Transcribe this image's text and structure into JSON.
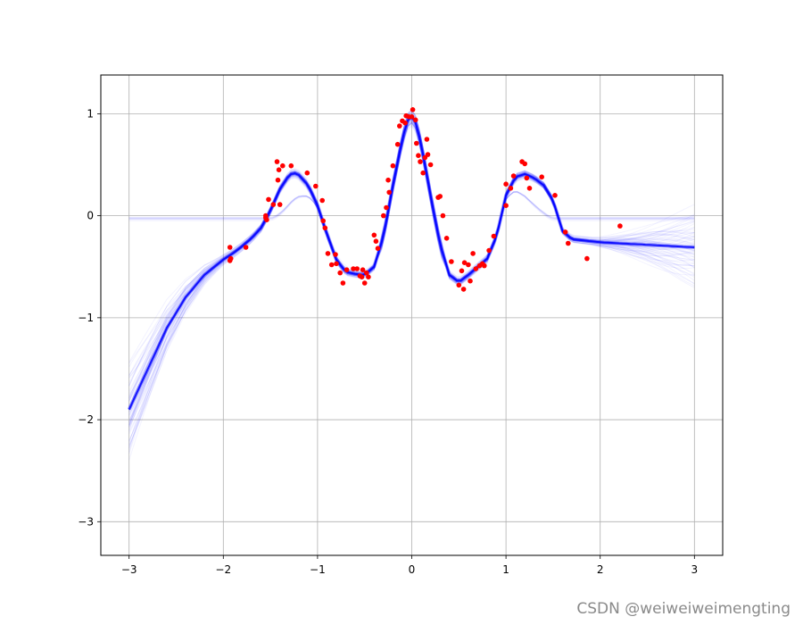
{
  "watermark": "CSDN @weiweiweimengting",
  "chart_data": {
    "type": "scatter",
    "title": "",
    "xlabel": "",
    "ylabel": "",
    "xlim": [
      -3.3,
      3.3
    ],
    "ylim": [
      -3.33,
      1.38
    ],
    "grid": true,
    "x_ticks": [
      -3,
      -2,
      -1,
      0,
      1,
      2,
      3
    ],
    "y_ticks": [
      -3,
      -2,
      -1,
      0,
      1
    ],
    "colors": {
      "points": "#ff0000",
      "mean": "#0000ff",
      "samples": "#0000ff",
      "grid": "#b0b0b0"
    },
    "mean_curve": {
      "x": [
        -3.0,
        -2.8,
        -2.6,
        -2.4,
        -2.2,
        -2.0,
        -1.9,
        -1.8,
        -1.7,
        -1.6,
        -1.5,
        -1.4,
        -1.3,
        -1.25,
        -1.2,
        -1.1,
        -1.0,
        -0.9,
        -0.8,
        -0.7,
        -0.6,
        -0.5,
        -0.4,
        -0.3,
        -0.2,
        -0.1,
        -0.05,
        0.0,
        0.05,
        0.1,
        0.2,
        0.3,
        0.4,
        0.5,
        0.6,
        0.7,
        0.8,
        0.9,
        1.0,
        1.1,
        1.2,
        1.3,
        1.4,
        1.5,
        1.6,
        1.7,
        1.8,
        2.0,
        2.2,
        2.4,
        2.6,
        2.8,
        3.0
      ],
      "y": [
        -1.9,
        -1.5,
        -1.1,
        -0.8,
        -0.58,
        -0.43,
        -0.37,
        -0.3,
        -0.22,
        -0.12,
        0.05,
        0.26,
        0.4,
        0.42,
        0.4,
        0.3,
        0.1,
        -0.18,
        -0.43,
        -0.55,
        -0.57,
        -0.58,
        -0.5,
        -0.2,
        0.3,
        0.75,
        0.93,
        0.97,
        0.9,
        0.7,
        0.2,
        -0.28,
        -0.58,
        -0.65,
        -0.58,
        -0.5,
        -0.42,
        -0.2,
        0.2,
        0.38,
        0.41,
        0.37,
        0.3,
        0.15,
        -0.15,
        -0.23,
        -0.24,
        -0.26,
        -0.27,
        -0.28,
        -0.29,
        -0.3,
        -0.31
      ]
    },
    "points": {
      "x": [
        -1.93,
        -1.93,
        -1.92,
        -1.76,
        -1.55,
        -1.55,
        -1.54,
        -1.52,
        -1.47,
        -1.43,
        -1.42,
        -1.41,
        -1.4,
        -1.37,
        -1.28,
        -1.11,
        -1.02,
        -0.95,
        -0.94,
        -0.92,
        -0.89,
        -0.85,
        -0.81,
        -0.8,
        -0.76,
        -0.73,
        -0.69,
        -0.62,
        -0.58,
        -0.55,
        -0.53,
        -0.52,
        -0.5,
        -0.48,
        -0.46,
        -0.4,
        -0.38,
        -0.36,
        -0.3,
        -0.27,
        -0.25,
        -0.24,
        -0.2,
        -0.15,
        -0.13,
        -0.1,
        -0.07,
        -0.06,
        -0.03,
        0.0,
        0.01,
        0.04,
        0.05,
        0.07,
        0.09,
        0.12,
        0.14,
        0.16,
        0.17,
        0.2,
        0.28,
        0.3,
        0.33,
        0.37,
        0.42,
        0.5,
        0.53,
        0.55,
        0.56,
        0.6,
        0.62,
        0.65,
        0.68,
        0.72,
        0.75,
        0.77,
        0.82,
        0.87,
        1.0,
        1.0,
        1.05,
        1.08,
        1.17,
        1.2,
        1.22,
        1.25,
        1.38,
        1.52,
        1.63,
        1.66,
        1.86,
        2.21
      ],
      "y": [
        -0.44,
        -0.31,
        -0.42,
        -0.31,
        -0.02,
        0.0,
        -0.04,
        0.16,
        0.11,
        0.53,
        0.35,
        0.45,
        0.11,
        0.49,
        0.49,
        0.42,
        0.29,
        0.15,
        -0.05,
        -0.12,
        -0.37,
        -0.48,
        -0.38,
        -0.47,
        -0.56,
        -0.66,
        -0.53,
        -0.52,
        -0.52,
        -0.59,
        -0.6,
        -0.53,
        -0.66,
        -0.56,
        -0.6,
        -0.19,
        -0.25,
        -0.32,
        0.0,
        0.08,
        0.35,
        0.23,
        0.49,
        0.7,
        0.88,
        0.93,
        0.91,
        0.98,
        0.97,
        0.97,
        1.04,
        0.94,
        0.71,
        0.59,
        0.53,
        0.42,
        0.57,
        0.75,
        0.6,
        0.5,
        0.18,
        0.19,
        0.0,
        -0.22,
        -0.45,
        -0.68,
        -0.54,
        -0.72,
        -0.46,
        -0.48,
        -0.64,
        -0.37,
        -0.52,
        -0.49,
        -0.47,
        -0.49,
        -0.34,
        -0.2,
        0.1,
        0.31,
        0.27,
        0.39,
        0.53,
        0.51,
        0.37,
        0.27,
        0.38,
        0.2,
        -0.16,
        -0.27,
        -0.42,
        -0.1
      ]
    }
  }
}
